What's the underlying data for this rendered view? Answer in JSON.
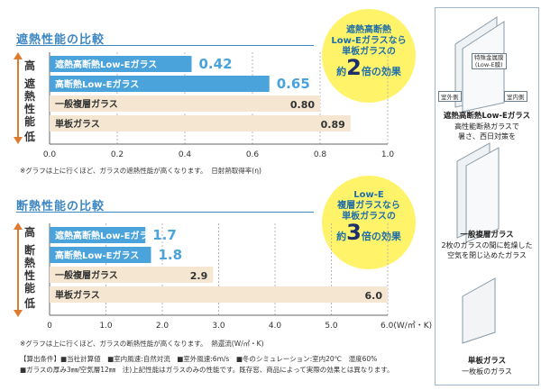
{
  "chart_data": [
    {
      "type": "bar",
      "title": "遮熱性能の比較",
      "ylabel": "遮熱性能",
      "y_top": "高",
      "y_bottom": "低",
      "xlabel": "日射熱取得率(η)",
      "xlim": [
        0,
        1.0
      ],
      "ticks": [
        "0.0",
        "0.2",
        "0.4",
        "0.6",
        "0.8",
        "1.0"
      ],
      "tick_values": [
        0,
        0.2,
        0.4,
        0.6,
        0.8,
        1.0
      ],
      "categories": [
        "遮熱高断熱Low-Eガラス",
        "高断熱Low-Eガラス",
        "一般複層ガラス",
        "単板ガラス"
      ],
      "values": [
        0.42,
        0.65,
        0.8,
        0.89
      ],
      "value_labels": [
        "0.42",
        "0.65",
        "0.80",
        "0.89"
      ],
      "highlight": [
        true,
        true,
        false,
        false
      ],
      "note": "※グラフは上に行くほど、ガラスの遮熱性能が高くなります。",
      "callout": {
        "lines": [
          "遮熱高断熱",
          "Low-Eガラスなら",
          "単板ガラスの"
        ],
        "prefix": "約",
        "number": "2",
        "suffix": "倍の効果"
      }
    },
    {
      "type": "bar",
      "title": "断熱性能の比較",
      "ylabel": "断熱性能",
      "y_top": "高",
      "y_bottom": "低",
      "xlabel": "熱還流(W/㎡・K)",
      "xlim": [
        0,
        6.0
      ],
      "ticks": [
        "0",
        "1.0",
        "2.0",
        "3.0",
        "4.0",
        "5.0",
        "6.0(W/㎡・K)"
      ],
      "tick_values": [
        0,
        1,
        2,
        3,
        4,
        5,
        6
      ],
      "categories": [
        "遮熱高断熱Low-Eガラス",
        "高断熱Low-Eガラス",
        "一般複層ガラス",
        "単板ガラス"
      ],
      "values": [
        1.7,
        1.8,
        2.9,
        6.0
      ],
      "value_labels": [
        "1.7",
        "1.8",
        "2.9",
        "6.0"
      ],
      "highlight": [
        true,
        true,
        false,
        false
      ],
      "note": "※グラフは上に行くほど、ガラスの断熱性能が高くなります。",
      "callout": {
        "lines": [
          "Low-E",
          "複層ガラスなら",
          "単板ガラスの"
        ],
        "prefix": "約",
        "number": "3",
        "suffix": "倍の効果"
      }
    }
  ],
  "footnotes": [
    "【算出条件】■当社計算値　■室内風速:自然対流　■室外風速:6m/s　■冬のシミュレーション:室内20℃　湿度60%",
    "■ガラスの厚み3㎜/空気層12㎜　注)上記性能はガラスのみの性能です。既存窓、商品によって実際の効果とは異なります。"
  ],
  "panel": {
    "tag_metal": "特殊金属膜",
    "tag_lowe": "(Low-E膜)",
    "outside": "室外側",
    "inside": "室内側",
    "glass1_name": "遮熱高断熱Low-Eガラス",
    "glass1_desc1": "高性能断熱ガラスで",
    "glass1_desc2": "暑さ、西日対策を",
    "glass2_name": "一般複層ガラス",
    "glass2_desc1": "2枚のガラスの間に乾燥した",
    "glass2_desc2": "空気を閉じ込めたガラス",
    "glass3_name": "単板ガラス",
    "glass3_desc1": "一枚板のガラス"
  },
  "colors": {
    "accent": "#3c86c2",
    "highlight_bar": "#4aa3db",
    "normal_bar": "#f4e6d1",
    "bubble": "#fff36a"
  }
}
